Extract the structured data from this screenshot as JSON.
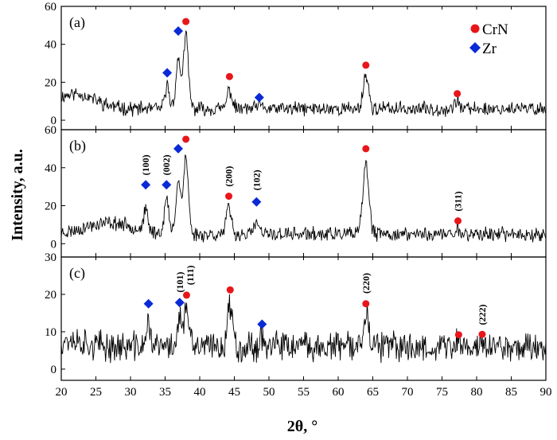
{
  "chart_data": {
    "type": "line",
    "title": "",
    "xlabel": "2θ, °",
    "ylabel": "Intensity, a.u.",
    "xlim": [
      20,
      90
    ],
    "x_ticks": [
      "20",
      "25",
      "30",
      "35",
      "40",
      "45",
      "50",
      "55",
      "60",
      "65",
      "70",
      "75",
      "80",
      "85",
      "90"
    ],
    "legend": {
      "placement": "top-right",
      "entries": [
        {
          "name": "CrN",
          "marker": "circle",
          "color": "#e8161b"
        },
        {
          "name": "Zr",
          "marker": "diamond",
          "color": "#0a2ad6"
        }
      ]
    },
    "line_color": "#000000",
    "panels": [
      {
        "label": "(a)",
        "ylim": [
          -5,
          60
        ],
        "y_ticks": [
          "0",
          "20",
          "40",
          "60"
        ],
        "baseline": 6,
        "noise": 3,
        "seed": 11,
        "low_angle_bump": {
          "center": 22,
          "width": 4,
          "height": 8
        },
        "peaks": [
          {
            "pos": 35.3,
            "height": 12,
            "width": 0.45
          },
          {
            "pos": 36.9,
            "height": 25,
            "width": 0.5
          },
          {
            "pos": 38.0,
            "height": 38,
            "width": 0.5
          },
          {
            "pos": 44.3,
            "height": 10,
            "width": 0.5
          },
          {
            "pos": 48.6,
            "height": 2,
            "width": 0.5
          },
          {
            "pos": 64.0,
            "height": 18,
            "width": 0.55
          },
          {
            "pos": 77.2,
            "height": 5,
            "width": 0.4
          }
        ],
        "markers": [
          {
            "type": "Zr",
            "x": 35.3,
            "y": 25
          },
          {
            "type": "Zr",
            "x": 36.9,
            "y": 47
          },
          {
            "type": "CrN",
            "x": 38.0,
            "y": 52
          },
          {
            "type": "CrN",
            "x": 44.3,
            "y": 23
          },
          {
            "type": "Zr",
            "x": 48.6,
            "y": 12
          },
          {
            "type": "CrN",
            "x": 64.0,
            "y": 29
          },
          {
            "type": "CrN",
            "x": 77.2,
            "y": 14
          }
        ],
        "annotations": []
      },
      {
        "label": "(b)",
        "ylim": [
          -7,
          60
        ],
        "y_ticks": [
          "0",
          "20",
          "40",
          "60"
        ],
        "baseline": 5,
        "noise": 3,
        "seed": 23,
        "low_angle_bump": {
          "center": 27,
          "width": 5,
          "height": 6
        },
        "peaks": [
          {
            "pos": 32.2,
            "height": 10,
            "width": 0.45
          },
          {
            "pos": 35.2,
            "height": 18,
            "width": 0.45
          },
          {
            "pos": 36.9,
            "height": 28,
            "width": 0.5
          },
          {
            "pos": 38.0,
            "height": 40,
            "width": 0.5
          },
          {
            "pos": 44.2,
            "height": 14,
            "width": 0.5
          },
          {
            "pos": 48.2,
            "height": 6,
            "width": 0.5
          },
          {
            "pos": 64.0,
            "height": 37,
            "width": 0.6
          },
          {
            "pos": 77.3,
            "height": 3,
            "width": 0.4
          }
        ],
        "markers": [
          {
            "type": "Zr",
            "x": 32.2,
            "y": 31
          },
          {
            "type": "Zr",
            "x": 35.2,
            "y": 31
          },
          {
            "type": "Zr",
            "x": 36.9,
            "y": 50
          },
          {
            "type": "CrN",
            "x": 38.0,
            "y": 55
          },
          {
            "type": "CrN",
            "x": 44.2,
            "y": 25
          },
          {
            "type": "Zr",
            "x": 48.2,
            "y": 22
          },
          {
            "type": "CrN",
            "x": 64.0,
            "y": 50
          },
          {
            "type": "CrN",
            "x": 77.3,
            "y": 12
          }
        ],
        "annotations": [
          {
            "text": "(100)",
            "x": 32.2,
            "y": 36
          },
          {
            "text": "(002)",
            "x": 35.2,
            "y": 36
          },
          {
            "text": "(200)",
            "x": 44.2,
            "y": 30
          },
          {
            "text": "(102)",
            "x": 48.2,
            "y": 28
          },
          {
            "text": "(311)",
            "x": 77.3,
            "y": 17
          }
        ]
      },
      {
        "label": "(c)",
        "ylim": [
          -3,
          30
        ],
        "y_ticks": [
          "0",
          "10",
          "20",
          "30"
        ],
        "baseline": 6,
        "noise": 3.2,
        "seed": 37,
        "low_angle_bump": {
          "center": 21,
          "width": 3,
          "height": 2
        },
        "peaks": [
          {
            "pos": 32.6,
            "height": 6,
            "width": 0.45
          },
          {
            "pos": 37.1,
            "height": 8,
            "width": 0.45
          },
          {
            "pos": 38.1,
            "height": 10,
            "width": 0.45
          },
          {
            "pos": 44.4,
            "height": 11,
            "width": 0.55
          },
          {
            "pos": 49.0,
            "height": 3,
            "width": 0.45
          },
          {
            "pos": 64.0,
            "height": 10,
            "width": 0.5
          },
          {
            "pos": 77.4,
            "height": 1.5,
            "width": 0.4
          },
          {
            "pos": 80.8,
            "height": 1.5,
            "width": 0.4
          }
        ],
        "markers": [
          {
            "type": "Zr",
            "x": 32.6,
            "y": 17.5
          },
          {
            "type": "Zr",
            "x": 37.1,
            "y": 17.8
          },
          {
            "type": "CrN",
            "x": 38.1,
            "y": 19.8
          },
          {
            "type": "CrN",
            "x": 44.4,
            "y": 21.2
          },
          {
            "type": "Zr",
            "x": 49.0,
            "y": 12
          },
          {
            "type": "CrN",
            "x": 64.0,
            "y": 17.5
          },
          {
            "type": "CrN",
            "x": 77.4,
            "y": 9.2
          },
          {
            "type": "CrN",
            "x": 80.8,
            "y": 9.3
          }
        ],
        "annotations": [
          {
            "text": "(101)",
            "x": 37.1,
            "y": 20.5
          },
          {
            "text": "(111)",
            "x": 38.6,
            "y": 22.5
          },
          {
            "text": "(220)",
            "x": 64.0,
            "y": 20.2
          },
          {
            "text": "(222)",
            "x": 80.8,
            "y": 11.8
          }
        ]
      }
    ]
  }
}
